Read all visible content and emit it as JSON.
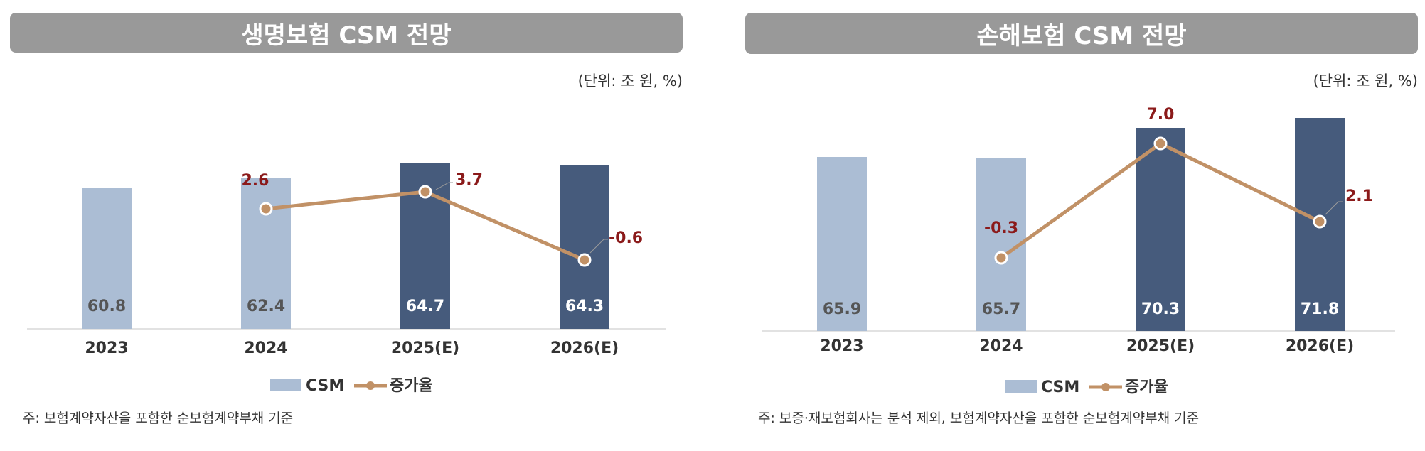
{
  "chart_data": [
    {
      "type": "bar",
      "title": "생명보험 CSM 전망",
      "unit": "(단위: 조 원, %)",
      "categories": [
        "2023",
        "2024",
        "2025(E)",
        "2026(E)"
      ],
      "series": [
        {
          "name": "CSM",
          "type": "bar",
          "values": [
            60.8,
            62.4,
            64.7,
            64.3
          ],
          "labels": [
            "60.8",
            "62.4",
            "64.7",
            "64.3"
          ],
          "colors": [
            "#abbdd4",
            "#abbdd4",
            "#465b7c",
            "#465b7c"
          ]
        },
        {
          "name": "증가율",
          "type": "line",
          "values": [
            null,
            2.6,
            3.7,
            -0.6
          ],
          "labels": [
            "",
            "2.6",
            "3.7",
            "-0.6"
          ],
          "color": "#c19166"
        }
      ],
      "legend": "bottom",
      "note": "주: 보험계약자산을 포함한 순보험계약부채 기준"
    },
    {
      "type": "bar",
      "title": "손해보험 CSM 전망",
      "unit": "(단위: 조 원, %)",
      "categories": [
        "2023",
        "2024",
        "2025(E)",
        "2026(E)"
      ],
      "series": [
        {
          "name": "CSM",
          "type": "bar",
          "values": [
            65.9,
            65.7,
            70.3,
            71.8
          ],
          "labels": [
            "65.9",
            "65.7",
            "70.3",
            "71.8"
          ],
          "colors": [
            "#abbdd4",
            "#abbdd4",
            "#465b7c",
            "#465b7c"
          ]
        },
        {
          "name": "증가율",
          "type": "line",
          "values": [
            null,
            -0.3,
            7.0,
            2.1
          ],
          "labels": [
            "",
            "-0.3",
            "7.0",
            "2.1"
          ],
          "color": "#c19166"
        }
      ],
      "legend": "bottom",
      "note": "주: 보증·재보험회사는 분석 제외, 보험계약자산을 포함한 순보험계약부채 기준"
    }
  ]
}
